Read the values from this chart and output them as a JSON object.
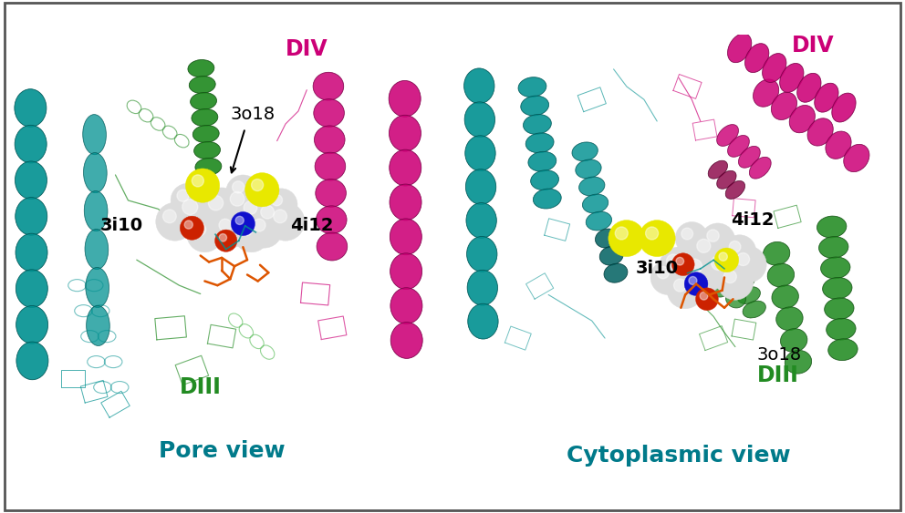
{
  "figure_bg": "#ffffff",
  "panel_bg": "#ffffff",
  "border_color": "#555555",
  "teal_color": "#009090",
  "teal_dark": "#006060",
  "magenta_color": "#CC0077",
  "magenta_dark": "#880044",
  "green_color": "#228B22",
  "green_light": "#4db84d",
  "green_dark": "#145214",
  "label_teal": "#007A8A",
  "pore_view_label": "Pore view",
  "cyto_view_label": "Cytoplasmic view",
  "DIV_label": "DIV",
  "DIII_label": "DIII",
  "label_3o18": "3o18",
  "label_3i10": "3i10",
  "label_4i12": "4i12",
  "label_fontsize": 14,
  "view_label_fontsize": 18,
  "domain_label_fontsize": 17
}
